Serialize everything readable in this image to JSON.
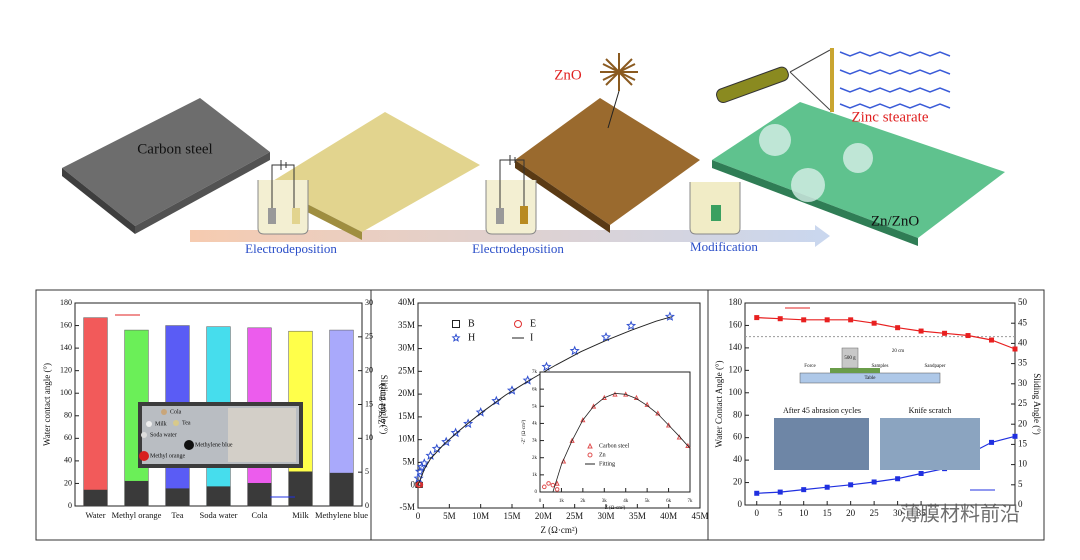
{
  "schematic": {
    "labels": [
      "Carbon steel",
      "ZnO",
      "Zinc stearate",
      "Zn/ZnO"
    ],
    "steps": [
      "Electrodeposition",
      "Electrodeposition",
      "Modification"
    ]
  },
  "watermark": "薄膜材料前沿",
  "chart_data": [
    {
      "type": "bar",
      "categories": [
        "Water",
        "Methyl orange",
        "Tea",
        "Soda water",
        "Cola",
        "Milk",
        "Methylene blue"
      ],
      "series": [
        {
          "colors": [
            "#f25a5a",
            "#6bef58",
            "#5a5cf5",
            "#46dded",
            "#ec5ced",
            "#ffff4a",
            "#a9a9fb"
          ],
          "values": [
            167,
            156,
            160,
            159,
            158,
            155,
            156
          ]
        },
        {
          "color": "#3a3a3a",
          "axis": "y2",
          "values": [
            2.4,
            3.7,
            2.6,
            2.9,
            3.4,
            5.1,
            4.9
          ]
        }
      ],
      "ylabel": "Water contact angle (°)",
      "y2label": "Sliding angle (°)",
      "ylim": [
        0,
        180
      ],
      "yticks": [
        0,
        20,
        40,
        60,
        80,
        100,
        120,
        140,
        160,
        180
      ],
      "y2lim": [
        0,
        30
      ],
      "y2ticks": [
        0,
        5,
        10,
        15,
        20,
        25,
        30
      ],
      "inset_labels": [
        "Cola",
        "Tea",
        "Milk",
        "Soda water",
        "Methylene blue",
        "Methyl orange"
      ]
    },
    {
      "type": "scatter",
      "xlabel": "Z (Ω·cm²)",
      "ylabel": "-Z″ (Ω·cm²)",
      "xlim": [
        0,
        45000000
      ],
      "xticks": [
        {
          "value": 0,
          "label": "0"
        },
        {
          "value": 5000000,
          "label": "5M"
        },
        {
          "value": 10000000,
          "label": "10M"
        },
        {
          "value": 15000000,
          "label": "15M"
        },
        {
          "value": 20000000,
          "label": "20M"
        },
        {
          "value": 25000000,
          "label": "25M"
        },
        {
          "value": 30000000,
          "label": "30M"
        },
        {
          "value": 35000000,
          "label": "35M"
        },
        {
          "value": 40000000,
          "label": "40M"
        },
        {
          "value": 45000000,
          "label": "45M"
        }
      ],
      "ylim": [
        -5000000,
        40000000
      ],
      "yticks": [
        {
          "value": -5000000,
          "label": "-5M"
        },
        {
          "value": 0,
          "label": "0"
        },
        {
          "value": 5000000,
          "label": "5M"
        },
        {
          "value": 10000000,
          "label": "10M"
        },
        {
          "value": 15000000,
          "label": "15M"
        },
        {
          "value": 20000000,
          "label": "20M"
        },
        {
          "value": 25000000,
          "label": "25M"
        },
        {
          "value": 30000000,
          "label": "30M"
        },
        {
          "value": 35000000,
          "label": "35M"
        },
        {
          "value": 40000000,
          "label": "40M"
        }
      ],
      "series": [
        {
          "name": "B",
          "marker": "square",
          "color": "#222222",
          "x": [
            50000,
            150000,
            300000
          ],
          "values": [
            60000,
            120000,
            80000
          ]
        },
        {
          "name": "E",
          "marker": "circle",
          "color": "#e03030",
          "x": [
            80000,
            200000,
            350000
          ],
          "values": [
            90000,
            160000,
            100000
          ]
        },
        {
          "name": "H",
          "marker": "star",
          "color": "#3050d0",
          "x": [
            100000,
            300000,
            600000,
            1000000,
            2000000,
            3000000,
            4500000,
            6000000,
            8000000,
            10000000,
            12500000,
            15000000,
            17500000,
            20500000,
            25000000,
            30000000,
            34000000,
            40200000
          ],
          "values": [
            1500000,
            3000000,
            4000000,
            4800000,
            6500000,
            8000000,
            9500000,
            11500000,
            13500000,
            16000000,
            18500000,
            20800000,
            23000000,
            26000000,
            29500000,
            32500000,
            35000000,
            37000000
          ]
        },
        {
          "name": "I",
          "marker": "line",
          "color": "#222222",
          "x": [
            0,
            1000000,
            2000000,
            4000000,
            6000000,
            8000000,
            10000000,
            14000000,
            18000000,
            22000000,
            26000000,
            30000000,
            34000000,
            38000000,
            40500000
          ],
          "values": [
            0,
            3500000,
            5800000,
            8800000,
            11300000,
            13600000,
            15800000,
            19800000,
            23200000,
            26400000,
            29300000,
            31800000,
            34000000,
            36000000,
            37000000
          ]
        }
      ],
      "inset": {
        "xlabel": "Z (Ω·cm²)",
        "ylabel": "-Z″ (Ω·cm²)",
        "xlim": [
          0,
          7000
        ],
        "xticks": [
          0,
          {
            "value": 1000,
            "label": "1k"
          },
          {
            "value": 2000,
            "label": "2k"
          },
          {
            "value": 3000,
            "label": "3k"
          },
          {
            "value": 4000,
            "label": "4k"
          },
          {
            "value": 5000,
            "label": "5k"
          },
          {
            "value": 6000,
            "label": "6k"
          },
          {
            "value": 7000,
            "label": "7k"
          }
        ],
        "ylim": [
          0,
          7000
        ],
        "yticks": [
          0,
          {
            "value": 1000,
            "label": "1k"
          },
          {
            "value": 2000,
            "label": "2k"
          },
          {
            "value": 3000,
            "label": "3k"
          },
          {
            "value": 4000,
            "label": "4k"
          },
          {
            "value": 5000,
            "label": "5k"
          },
          {
            "value": 6000,
            "label": "6k"
          },
          {
            "value": 7000,
            "label": "7k"
          }
        ],
        "series": [
          {
            "name": "Carbon steel",
            "marker": "triangle",
            "color": "#e05050",
            "x": [
              800,
              1100,
              1500,
              2000,
              2500,
              3000,
              3500,
              4000,
              4500,
              5000,
              5500,
              6000,
              6500,
              6900
            ],
            "values": [
              500,
              1800,
              3000,
              4200,
              5000,
              5500,
              5700,
              5700,
              5500,
              5100,
              4600,
              3900,
              3200,
              2700
            ]
          },
          {
            "name": "Zn",
            "marker": "circle",
            "color": "#e05050",
            "x": [
              200,
              400,
              600,
              800
            ],
            "values": [
              300,
              500,
              400,
              150
            ]
          },
          {
            "name": "Fitting",
            "marker": "line",
            "color": "#222222",
            "x": [
              600,
              1000,
              1500,
              2000,
              2500,
              3000,
              3500,
              4000,
              4500,
              5000,
              5500,
              6000,
              6500,
              7000
            ],
            "values": [
              0,
              1600,
              3000,
              4200,
              5000,
              5500,
              5750,
              5700,
              5450,
              5050,
              4550,
              3900,
              3250,
              2550
            ]
          }
        ]
      }
    },
    {
      "type": "line",
      "ylabel": "Water Contact Angle (°)",
      "y2label": "Sliding Angle (°)",
      "xlim": [
        -2.5,
        55
      ],
      "xticks": [
        0,
        5,
        10,
        15,
        20,
        25,
        30,
        35
      ],
      "ylim": [
        0,
        180
      ],
      "yticks": [
        0,
        20,
        40,
        60,
        80,
        100,
        120,
        140,
        160,
        180
      ],
      "y2lim": [
        0,
        50
      ],
      "y2ticks": [
        0,
        5,
        10,
        15,
        20,
        25,
        30,
        35,
        40,
        45,
        50
      ],
      "reference_line": 150,
      "x": [
        0,
        5,
        10,
        15,
        20,
        25,
        30,
        35,
        40,
        45,
        50,
        55
      ],
      "series": [
        {
          "color": "#e82020",
          "values": [
            167,
            166,
            165,
            165,
            165,
            162,
            158,
            155,
            153,
            151,
            147,
            139
          ]
        },
        {
          "color": "#2030e0",
          "axis": "y2",
          "values": [
            2.9,
            3.2,
            3.8,
            4.4,
            5.0,
            5.7,
            6.5,
            7.8,
            9.0,
            12.5,
            15.5,
            17.0
          ]
        }
      ],
      "annotations": [
        "500 g",
        "20 cm",
        "Force",
        "Samples",
        "Sandpaper",
        "Table",
        "After 45 abrasion cycles",
        "Knife scratch"
      ]
    }
  ]
}
